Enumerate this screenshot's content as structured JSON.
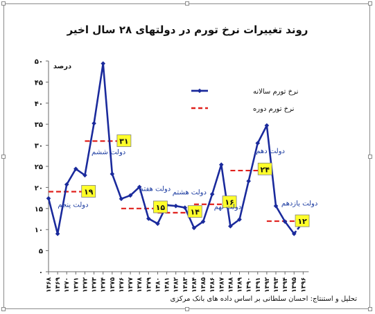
{
  "chart_data": {
    "type": "line",
    "title": "روند تغییرات نرخ تورم در دولتهای ۲۸ سال اخیر",
    "ylabel": "درصد",
    "source": "تحلیل و استنتاج: احسان سلطانی بر اساس داده های بانک مرکزی",
    "ylim": [
      0,
      50
    ],
    "yticks": [
      "۰",
      "۵",
      "۱۰",
      "۱۵",
      "۲۰",
      "۲۵",
      "۳۰",
      "۳۵",
      "۴۰",
      "۴۵",
      "۵۰"
    ],
    "ytick_values": [
      0,
      5,
      10,
      15,
      20,
      25,
      30,
      35,
      40,
      45,
      50
    ],
    "x": [
      "۱۳۶۸",
      "۱۳۶۹",
      "۱۳۷۰",
      "۱۳۷۱",
      "۱۳۷۲",
      "۱۳۷۳",
      "۱۳۷۴",
      "۱۳۷۵",
      "۱۳۷۶",
      "۱۳۷۷",
      "۱۳۷۸",
      "۱۳۷۹",
      "۱۳۸۰",
      "۱۳۸۱",
      "۱۳۸۲",
      "۱۳۸۳",
      "۱۳۸۴",
      "۱۳۸۵",
      "۱۳۸۶",
      "۱۳۸۷",
      "۱۳۸۸",
      "۱۳۸۹",
      "۱۳۹۰",
      "۱۳۹۱",
      "۱۳۹۲",
      "۱۳۹۳",
      "۱۳۹۴",
      "۱۳۹۵",
      "۱۳۹۶"
    ],
    "series": [
      {
        "name": "نرخ تورم سالانه",
        "color": "#1a2a9c",
        "values": [
          17.4,
          9.0,
          20.7,
          24.4,
          22.9,
          35.2,
          49.4,
          23.2,
          17.3,
          18.1,
          20.1,
          12.6,
          11.4,
          15.8,
          15.6,
          15.2,
          10.4,
          11.9,
          18.4,
          25.4,
          10.8,
          12.4,
          21.5,
          30.5,
          34.7,
          15.6,
          11.9,
          9.0,
          null
        ],
        "projection": {
          "from_index": 27,
          "to_index": 28,
          "from_value": 9.0,
          "to_value": 11.8
        }
      }
    ],
    "periods": [
      {
        "name": "دولت پنجم",
        "label": "۱۹",
        "value": 19,
        "start": 0,
        "end": 4,
        "name_year": 2.7,
        "name_value": 15.4,
        "badge_year": 4.4,
        "badge_value": 19
      },
      {
        "name": "دولت ششم",
        "label": "۳۱",
        "value": 31,
        "start": 4,
        "end": 8,
        "name_year": 6.6,
        "name_value": 27.9,
        "badge_year": 8.3,
        "badge_value": 31
      },
      {
        "name": "دولت هفتم",
        "label": "۱۵",
        "value": 15,
        "start": 8,
        "end": 12,
        "name_year": 11.7,
        "name_value": 19.2,
        "badge_year": 12.3,
        "badge_value": 15.3
      },
      {
        "name": "دولت هشتم",
        "label": "۱۴",
        "value": 14,
        "start": 12,
        "end": 16,
        "name_year": 15.5,
        "name_value": 18.3,
        "badge_year": 16.1,
        "badge_value": 14.2
      },
      {
        "name": "دولت نهم",
        "label": "۱۶",
        "value": 16,
        "start": 16,
        "end": 19.6,
        "name_year": 19.7,
        "name_value": 14.9,
        "badge_year": 19.9,
        "badge_value": 16.5
      },
      {
        "name": "دولت دهم",
        "label": "۲۴",
        "value": 24,
        "start": 20,
        "end": 23.6,
        "name_year": 24.4,
        "name_value": 28.1,
        "badge_year": 23.8,
        "badge_value": 24.3
      },
      {
        "name": "دولت یازدهم",
        "label": "۱۲",
        "value": 12,
        "start": 24,
        "end": 27.6,
        "name_year": 27.6,
        "name_value": 15.7,
        "badge_year": 27.9,
        "badge_value": 12
      }
    ],
    "legend": {
      "position": "right",
      "items": [
        {
          "label": "نرخ تورم سالانه",
          "style": "solid",
          "color": "#1a2a9c"
        },
        {
          "label": "نرخ تورم دوره",
          "style": "dashed",
          "color": "#e0201c"
        }
      ]
    },
    "grid": false
  },
  "colors": {
    "series": "#1a2a9c",
    "period_line": "#e0201c",
    "badge_fill": "#ffff2a",
    "badge_border": "#7f7f7f",
    "annotation_text": "#1a3aa0",
    "axis": "#6a6a6a"
  }
}
